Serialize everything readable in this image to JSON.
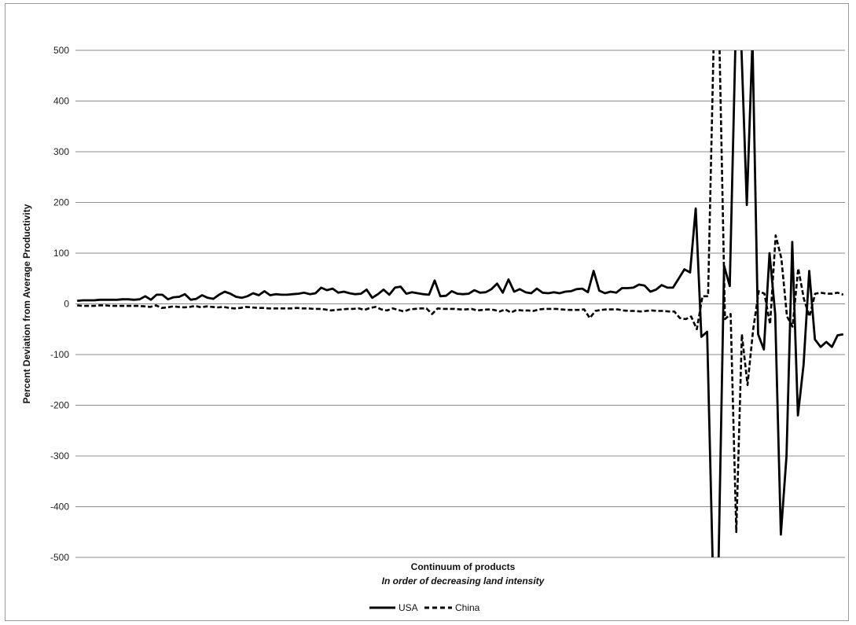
{
  "chart_data": {
    "type": "line",
    "title": "",
    "ylabel": "Percent Deviation from Average Productivity",
    "xlabel": "Continuum of products",
    "xlabel_sub": "In order of decreasing land intensity",
    "ylim": [
      -500,
      500
    ],
    "yticks": [
      500,
      400,
      300,
      200,
      100,
      0,
      -100,
      -200,
      -300,
      -400,
      -500
    ],
    "grid": true,
    "legend_position": "bottom",
    "series": [
      {
        "name": "USA",
        "style": "solid",
        "color": "#000000",
        "values": [
          6,
          7,
          7,
          7,
          8,
          8,
          8,
          8,
          9,
          9,
          8,
          9,
          15,
          8,
          18,
          18,
          9,
          13,
          14,
          19,
          8,
          10,
          17,
          12,
          10,
          18,
          24,
          20,
          14,
          12,
          15,
          21,
          17,
          25,
          17,
          19,
          18,
          18,
          19,
          20,
          22,
          19,
          21,
          32,
          27,
          30,
          22,
          24,
          21,
          19,
          20,
          28,
          12,
          19,
          28,
          18,
          32,
          34,
          20,
          23,
          21,
          19,
          18,
          46,
          15,
          16,
          25,
          20,
          19,
          20,
          27,
          22,
          23,
          29,
          40,
          22,
          48,
          24,
          29,
          23,
          21,
          30,
          22,
          21,
          23,
          21,
          24,
          25,
          29,
          30,
          23,
          65,
          26,
          21,
          24,
          22,
          31,
          31,
          32,
          38,
          36,
          24,
          28,
          37,
          32,
          32,
          50,
          68,
          62,
          188,
          -65,
          -55,
          -520,
          -520,
          75,
          35,
          520,
          520,
          195,
          520,
          -60,
          -90,
          100,
          -20,
          -455,
          -300,
          122,
          -220,
          -120,
          65,
          -70,
          -85,
          -75,
          -85,
          -62,
          -60
        ]
      },
      {
        "name": "China",
        "style": "dashed",
        "color": "#000000",
        "values": [
          -3,
          -4,
          -4,
          -4,
          -3,
          -3,
          -4,
          -4,
          -4,
          -4,
          -4,
          -4,
          -5,
          -6,
          -3,
          -8,
          -7,
          -5,
          -6,
          -7,
          -6,
          -4,
          -7,
          -5,
          -6,
          -7,
          -6,
          -8,
          -9,
          -8,
          -6,
          -7,
          -8,
          -8,
          -9,
          -9,
          -9,
          -9,
          -9,
          -8,
          -9,
          -9,
          -10,
          -10,
          -11,
          -13,
          -12,
          -11,
          -10,
          -10,
          -9,
          -12,
          -8,
          -6,
          -11,
          -13,
          -9,
          -12,
          -15,
          -11,
          -10,
          -9,
          -9,
          -20,
          -9,
          -10,
          -10,
          -10,
          -11,
          -11,
          -10,
          -13,
          -12,
          -11,
          -12,
          -15,
          -11,
          -17,
          -12,
          -13,
          -13,
          -14,
          -11,
          -10,
          -10,
          -10,
          -11,
          -12,
          -12,
          -12,
          -11,
          -28,
          -14,
          -12,
          -11,
          -11,
          -11,
          -13,
          -14,
          -14,
          -15,
          -14,
          -13,
          -14,
          -14,
          -15,
          -15,
          -28,
          -30,
          -25,
          -50,
          15,
          15,
          520,
          520,
          -30,
          -20,
          -450,
          -60,
          -160,
          -50,
          25,
          20,
          -40,
          135,
          90,
          -25,
          -45,
          70,
          10,
          -25,
          20,
          22,
          20,
          20,
          22,
          18
        ]
      }
    ]
  }
}
